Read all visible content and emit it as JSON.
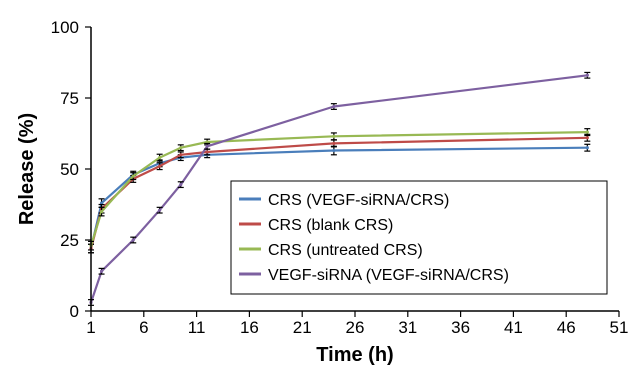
{
  "chart_data": {
    "type": "line",
    "xlabel": "Time (h)",
    "ylabel": "Release (%)",
    "xlim": [
      1,
      51
    ],
    "ylim": [
      0,
      100
    ],
    "xticks": [
      "1",
      "6",
      "11",
      "16",
      "21",
      "26",
      "31",
      "36",
      "41",
      "46",
      "51"
    ],
    "yticks": [
      "0",
      "25",
      "50",
      "75",
      "100"
    ],
    "grid": false,
    "legend_position": "center-right",
    "series": [
      {
        "name": "CRS (VEGF-siRNA/CRS)",
        "color": "#4a7ebb",
        "x": [
          1,
          2,
          5,
          7.5,
          9.5,
          12,
          24,
          48
        ],
        "y": [
          22,
          38,
          48,
          52,
          54,
          55,
          56.5,
          57.5
        ],
        "err": [
          1.5,
          1.5,
          1.2,
          1.2,
          1.0,
          1.0,
          1.5,
          1.2
        ]
      },
      {
        "name": "CRS (blank CRS)",
        "color": "#be4b48",
        "x": [
          1,
          2,
          5,
          7.5,
          9.5,
          12,
          24,
          48
        ],
        "y": [
          22,
          36,
          46.5,
          51,
          55,
          56,
          59,
          61
        ],
        "err": [
          1.5,
          1.5,
          1.2,
          1.2,
          1.0,
          1.0,
          1.2,
          1.2
        ]
      },
      {
        "name": "CRS (untreated CRS)",
        "color": "#98b954",
        "x": [
          1,
          2,
          5,
          7.5,
          9.5,
          12,
          24,
          48
        ],
        "y": [
          23,
          35,
          47.5,
          54,
          57.5,
          59.5,
          61.5,
          63
        ],
        "err": [
          1.5,
          1.5,
          1.2,
          1.2,
          1.0,
          1.0,
          1.2,
          1.2
        ]
      },
      {
        "name": "VEGF-siRNA (VEGF-siRNA/CRS)",
        "color": "#7d60a0",
        "x": [
          1,
          2,
          5,
          7.5,
          9.5,
          12,
          24,
          48
        ],
        "y": [
          3,
          14,
          25,
          35.5,
          44.5,
          58,
          72,
          83
        ],
        "err": [
          1.0,
          1.0,
          1.0,
          1.0,
          1.0,
          1.0,
          1.0,
          1.0
        ]
      }
    ]
  }
}
